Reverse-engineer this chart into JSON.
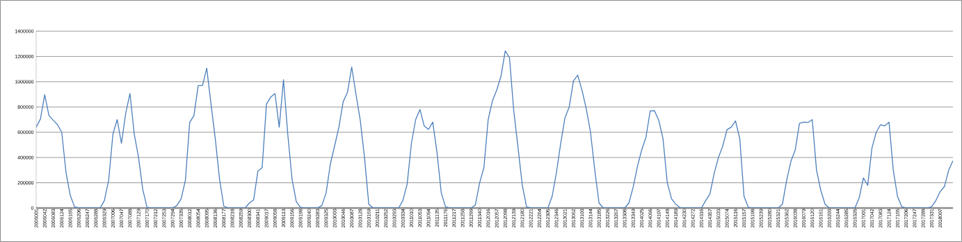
{
  "chart_data": {
    "type": "line",
    "grid": "y",
    "marker": "none",
    "line_style": "solid",
    "ylim": [
      0,
      1400000
    ],
    "yticks": [
      0,
      200000,
      400000,
      600000,
      800000,
      1000000,
      1200000,
      1400000
    ],
    "categories": [
      "2006001",
      null,
      "2006042",
      null,
      "2006083",
      null,
      "2006124",
      null,
      "2006165",
      null,
      "2006206",
      null,
      "2006247",
      null,
      "2006288",
      null,
      "2006329",
      null,
      "2007006",
      null,
      "2007047",
      null,
      "2007088",
      null,
      "2007129",
      null,
      "2007170",
      null,
      "2007212",
      null,
      "2007253",
      null,
      "2007294",
      null,
      "2007335",
      null,
      "2008012",
      null,
      "2008054",
      null,
      "2008095",
      null,
      "2008136",
      null,
      "2008177",
      null,
      "2008218",
      null,
      "2008259",
      null,
      "2008300",
      null,
      "2008341",
      null,
      "2009017",
      null,
      "2009058",
      null,
      "2009113",
      null,
      "2009156",
      null,
      "2009198",
      null,
      "2009240",
      null,
      "2009283",
      null,
      "2009325",
      null,
      "2010003",
      null,
      "2010046",
      null,
      "2010087",
      null,
      "2010128",
      null,
      "2010169",
      null,
      "2010211",
      null,
      "2010252",
      null,
      "2010293",
      null,
      "2010334",
      null,
      "2011010",
      null,
      "2011053",
      null,
      "2011094",
      null,
      "2011135",
      null,
      "2011176",
      null,
      "2011217",
      null,
      "2011258",
      null,
      "2011299",
      null,
      "2011340",
      null,
      "2012016",
      null,
      "2012057",
      null,
      "2012098",
      null,
      "2012139",
      null,
      "2012180",
      null,
      "2012221",
      null,
      "2012264",
      null,
      "2012305",
      null,
      "2012346",
      null,
      "2013021",
      null,
      "2013062",
      null,
      "2013103",
      null,
      "2013144",
      null,
      "2013185",
      null,
      "2013226",
      null,
      "2013267",
      null,
      "2013308",
      null,
      "2013349",
      null,
      "2014025",
      null,
      "2014066",
      null,
      "2014107",
      null,
      "2014148",
      null,
      "2014189",
      null,
      "2014230",
      null,
      "2014272",
      null,
      "2014316",
      null,
      "2014357",
      null,
      "2015033",
      null,
      "2015074",
      null,
      "2015116",
      null,
      "2015157",
      null,
      "2015198",
      null,
      "2015239",
      null,
      "2015280",
      null,
      "2015321",
      null,
      "2015362",
      null,
      "2016038",
      null,
      "2016079",
      null,
      "2016120",
      null,
      "2016161",
      null,
      "2016203",
      null,
      "2016244",
      null,
      "2016285",
      null,
      "2016326",
      null,
      "2017001",
      null,
      "2017042",
      null,
      "2017083",
      null,
      "2017124",
      null,
      "2017165",
      null,
      "2017206",
      null,
      "2017247",
      null,
      "2017288",
      null,
      "2017331",
      null,
      "2018007",
      null,
      null,
      null
    ],
    "series": [
      {
        "color": "#4a7ebb",
        "values": [
          640000,
          705000,
          897000,
          732000,
          695000,
          660000,
          600000,
          280000,
          100000,
          9000,
          0,
          0,
          0,
          0,
          0,
          0,
          60000,
          220000,
          586000,
          700000,
          512000,
          750000,
          906000,
          586000,
          403000,
          146000,
          5000,
          0,
          0,
          0,
          0,
          0,
          0,
          20000,
          73000,
          220000,
          677000,
          732000,
          970000,
          970000,
          1107000,
          823000,
          550000,
          230000,
          15000,
          0,
          0,
          0,
          0,
          0,
          40000,
          64000,
          293000,
          320000,
          823000,
          878000,
          906000,
          640000,
          1016000,
          586000,
          230000,
          50000,
          5000,
          0,
          0,
          0,
          0,
          20000,
          120000,
          350000,
          494000,
          640000,
          842000,
          915000,
          1116000,
          900000,
          695000,
          400000,
          30000,
          0,
          0,
          0,
          0,
          0,
          0,
          0,
          60000,
          190000,
          512000,
          700000,
          780000,
          650000,
          622000,
          680000,
          440000,
          120000,
          10000,
          0,
          0,
          0,
          0,
          0,
          0,
          25000,
          200000,
          320000,
          700000,
          850000,
          933000,
          1043000,
          1244000,
          1190000,
          769000,
          480000,
          180000,
          9000,
          0,
          0,
          0,
          0,
          0,
          92000,
          280000,
          510000,
          714000,
          800000,
          1007000,
          1052000,
          933000,
          787000,
          600000,
          300000,
          40000,
          0,
          0,
          0,
          0,
          0,
          0,
          40000,
          165000,
          329000,
          460000,
          560000,
          769000,
          770000,
          695000,
          549000,
          200000,
          73000,
          30000,
          3000,
          0,
          0,
          0,
          0,
          0,
          58000,
          110000,
          275000,
          400000,
          490000,
          620000,
          640000,
          690000,
          549000,
          92000,
          5000,
          0,
          0,
          0,
          0,
          0,
          0,
          0,
          30000,
          220000,
          370000,
          458000,
          670000,
          680000,
          677000,
          700000,
          300000,
          140000,
          30000,
          0,
          0,
          0,
          0,
          0,
          0,
          0,
          80000,
          238000,
          180000,
          476000,
          600000,
          660000,
          650000,
          680000,
          300000,
          90000,
          9000,
          0,
          0,
          0,
          0,
          0,
          0,
          10000,
          60000,
          130000,
          170000,
          300000,
          375000
        ]
      }
    ]
  }
}
